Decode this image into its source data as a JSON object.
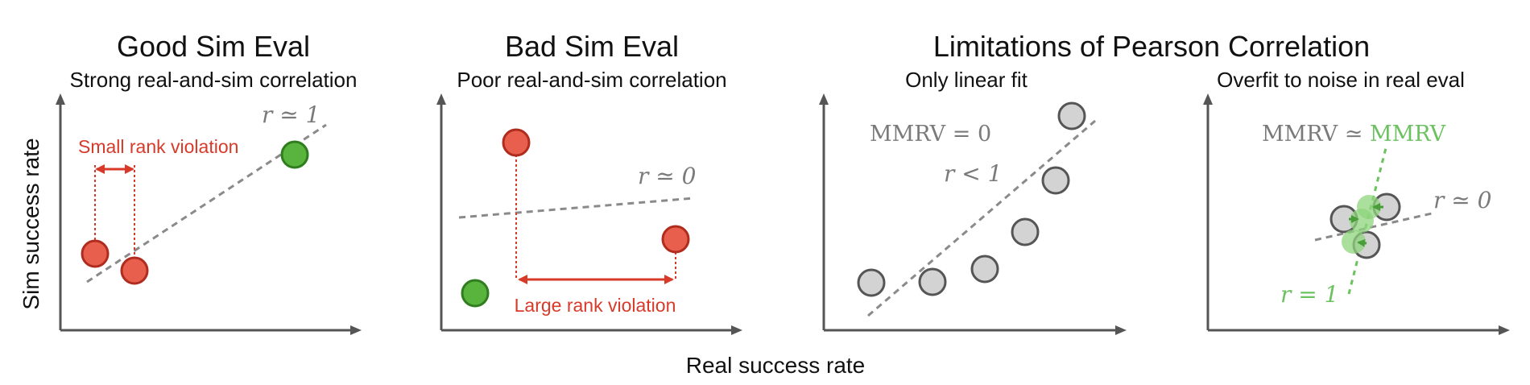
{
  "headings": {
    "good_title": "Good Sim Eval",
    "good_subtitle": "Strong real-and-sim correlation",
    "bad_title": "Bad Sim Eval",
    "bad_subtitle": "Poor real-and-sim correlation",
    "limits_title": "Limitations of Pearson Correlation",
    "linear_subtitle": "Only linear fit",
    "overfit_subtitle": "Overfit to noise in real eval"
  },
  "axes": {
    "x_label": "Real success rate",
    "y_label": "Sim success rate"
  },
  "annotations": {
    "good_r": "r ≃ 1",
    "good_violation": "Small rank violation",
    "bad_r": "r ≃ 0",
    "bad_violation": "Large rank violation",
    "linear_mmrv": "MMRV = 0",
    "linear_r": "r < 1",
    "overfit_mmrv_left": "MMRV ≃ ",
    "overfit_mmrv_right": "MMRV",
    "overfit_r_gray": "r ≃ 0",
    "overfit_r_green": "r = 1"
  },
  "colors": {
    "red_fill": "#e8604d",
    "red_stroke": "#b02c1e",
    "red_line": "#d83a2a",
    "green_fill": "#58b43c",
    "green_stroke": "#2f7d1e",
    "gray_fill": "#d3d3d3",
    "gray_stroke": "#555555",
    "light_green": "#8fd47d",
    "fit_line": "#8a8a8a",
    "axis": "#555555"
  }
}
